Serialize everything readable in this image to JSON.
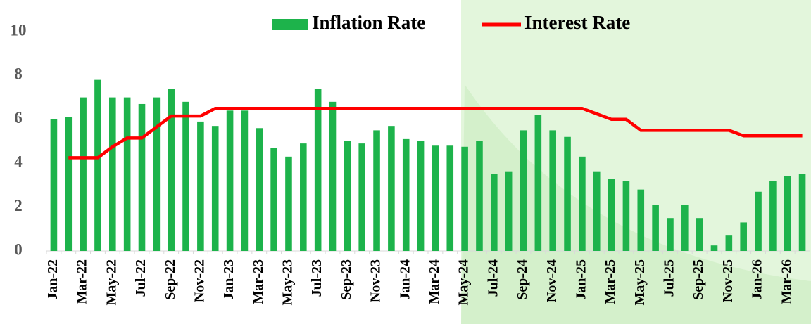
{
  "chart_data": {
    "type": "bar-line",
    "categories": [
      "Jan-22",
      null,
      "Mar-22",
      null,
      "May-22",
      null,
      "Jul-22",
      null,
      "Sep-22",
      null,
      "Nov-22",
      null,
      "Jan-23",
      null,
      "Mar-23",
      null,
      "May-23",
      null,
      "Jul-23",
      null,
      "Sep-23",
      null,
      "Nov-23",
      null,
      "Jan-24",
      null,
      "Mar-24",
      null,
      "May-24",
      null,
      "Jul-24",
      null,
      "Sep-24",
      null,
      "Nov-24",
      null,
      "Jan-25",
      null,
      "Mar-25",
      null,
      "May-25",
      null,
      "Jul-25",
      null,
      "Sep-25",
      null,
      "Nov-25",
      null,
      "Jan-26",
      null,
      "Mar-26",
      null
    ],
    "series": [
      {
        "name": "Inflation Rate",
        "color": "#1db34b",
        "kind": "bar",
        "values": [
          6.0,
          6.1,
          7.0,
          7.8,
          7.0,
          7.0,
          6.7,
          7.0,
          7.4,
          6.8,
          5.9,
          5.7,
          6.4,
          6.4,
          5.6,
          4.7,
          4.3,
          4.9,
          7.4,
          6.8,
          5.0,
          4.9,
          5.5,
          5.7,
          5.1,
          5.0,
          4.8,
          4.8,
          4.75,
          5.0,
          3.5,
          3.6,
          5.5,
          6.2,
          5.5,
          5.2,
          4.3,
          3.6,
          3.3,
          3.2,
          2.8,
          2.1,
          1.5,
          2.1,
          1.5,
          0.25,
          0.7,
          1.3,
          2.7,
          3.2,
          3.4,
          3.5
        ]
      },
      {
        "name": "Interest Rate",
        "color": "#ff0000",
        "kind": "line",
        "values": [
          null,
          4.25,
          4.25,
          4.25,
          4.75,
          5.15,
          5.15,
          5.65,
          6.15,
          6.15,
          6.15,
          6.5,
          6.5,
          6.5,
          6.5,
          6.5,
          6.5,
          6.5,
          6.5,
          6.5,
          6.5,
          6.5,
          6.5,
          6.5,
          6.5,
          6.5,
          6.5,
          6.5,
          6.5,
          6.5,
          6.5,
          6.5,
          6.5,
          6.5,
          6.5,
          6.5,
          6.5,
          6.25,
          6.0,
          6.0,
          5.5,
          5.5,
          5.5,
          5.5,
          5.5,
          5.5,
          5.5,
          5.25,
          5.25,
          5.25,
          5.25,
          5.25
        ]
      }
    ],
    "ylim": [
      0,
      10
    ],
    "yticks": [
      0,
      2,
      4,
      6,
      8,
      10
    ],
    "grid": false,
    "legend": "top"
  }
}
